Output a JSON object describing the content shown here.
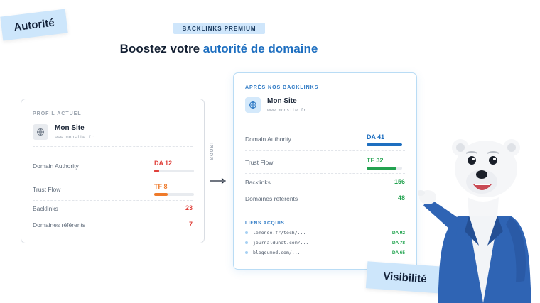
{
  "stickers": {
    "left": "Autorité",
    "right": "Visibilité"
  },
  "badge": "BACKLINKS PREMIUM",
  "headline": {
    "prefix": "Boostez votre ",
    "accent": "autorité de domaine"
  },
  "before": {
    "label": "PROFIL ACTUEL",
    "site_name": "Mon Site",
    "site_url": "www.monsite.fr",
    "metrics": [
      {
        "label": "Domain Authority",
        "value": "DA 12",
        "progress": 0.12,
        "color": "#e0403a"
      },
      {
        "label": "Trust Flow",
        "value": "TF 8",
        "progress": 0.34,
        "color": "#ef7a2a"
      }
    ],
    "counts": [
      {
        "label": "Backlinks",
        "value": "23"
      },
      {
        "label": "Domaines référents",
        "value": "7"
      }
    ]
  },
  "boost_label": "BOOST",
  "after": {
    "label": "APRÈS NOS BACKLINKS",
    "site_name": "Mon Site",
    "site_url": "www.monsite.fr",
    "metrics": [
      {
        "label": "Domain Authority",
        "value": "DA 41",
        "progress": 1.0,
        "color": "#1e6fc0"
      },
      {
        "label": "Trust Flow",
        "value": "TF 32",
        "progress": 0.84,
        "color": "#22a24f"
      }
    ],
    "counts": [
      {
        "label": "Backlinks",
        "value": "156"
      },
      {
        "label": "Domaines référents",
        "value": "48"
      }
    ],
    "links_label": "LIENS ACQUIS",
    "links": [
      {
        "url": "lemonde.fr/tech/...",
        "da": "DA 92"
      },
      {
        "url": "journaldunet.com/...",
        "da": "DA 78"
      },
      {
        "url": "blogdumod.com/...",
        "da": "DA 65"
      }
    ]
  },
  "colors": {
    "accent": "#1e6fc0",
    "red": "#e0403a",
    "orange": "#ef7a2a",
    "green": "#22a24f",
    "sticker": "#cde6fb"
  },
  "icons": {
    "site": "globe-icon",
    "boost": "arrow-right-icon",
    "mascot": "polar-bear-mascot"
  }
}
